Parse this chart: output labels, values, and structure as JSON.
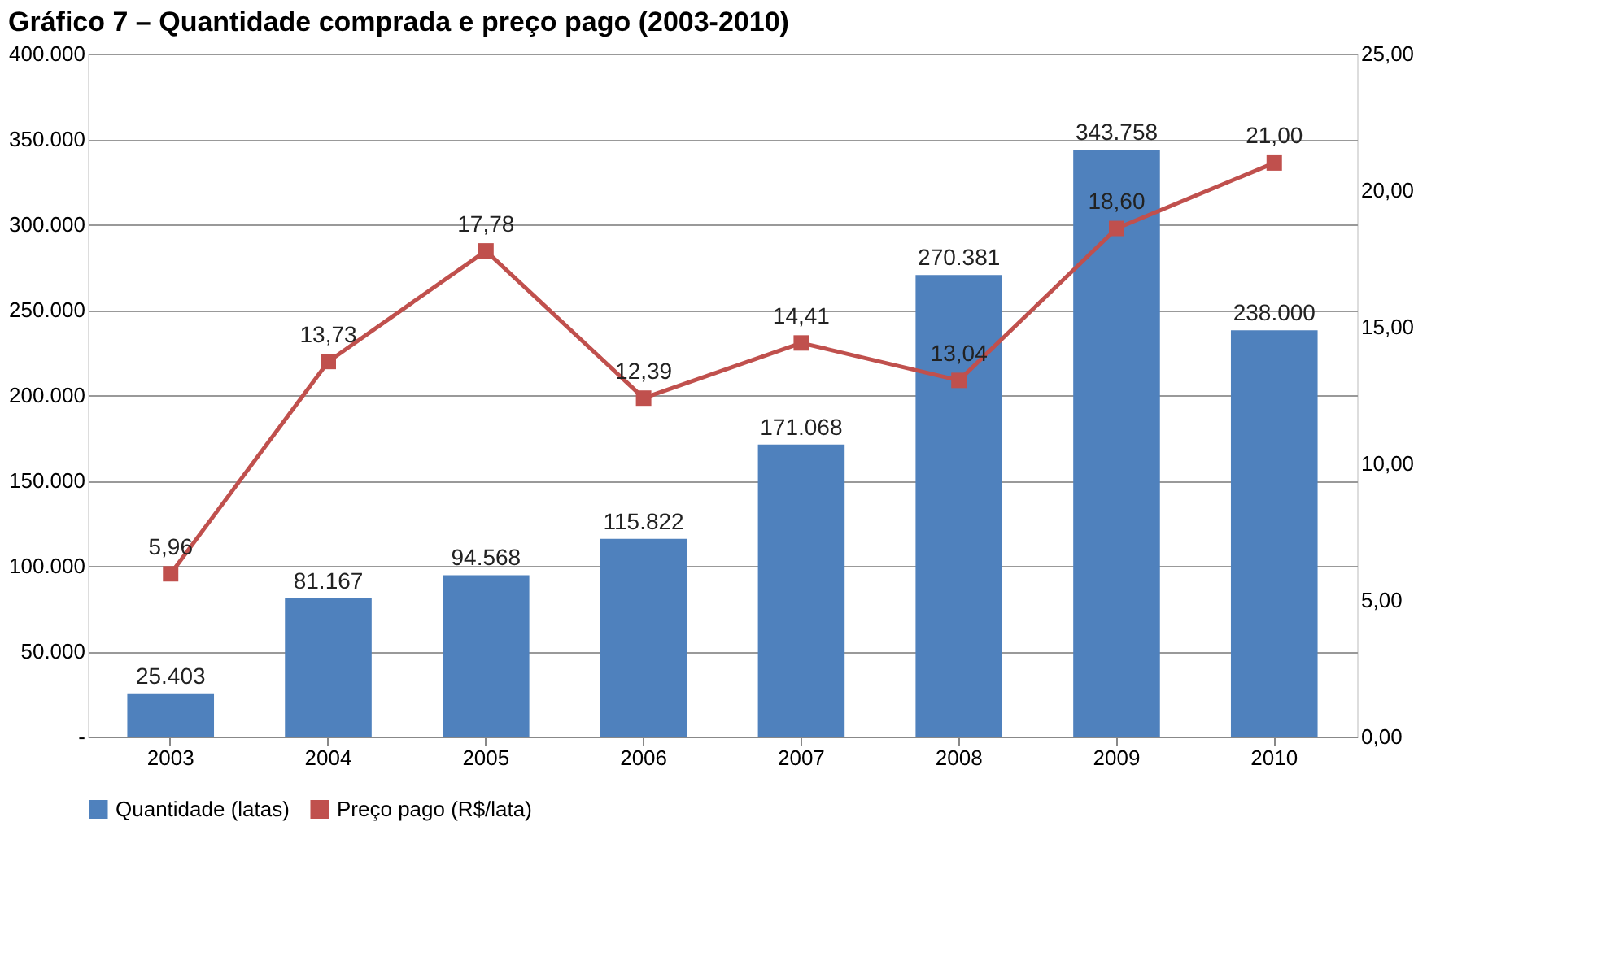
{
  "chart_data": {
    "type": "bar",
    "title": "Gráfico 7 – Quantidade comprada e preço pago (2003-2010)",
    "categories": [
      "2003",
      "2004",
      "2005",
      "2006",
      "2007",
      "2008",
      "2009",
      "2010"
    ],
    "series": [
      {
        "name": "Quantidade (latas)",
        "color": "#4f81bd",
        "values": [
          25403,
          81167,
          94568,
          115822,
          171068,
          270381,
          343758,
          238000
        ],
        "value_labels": [
          "25.403",
          "81.167",
          "94.568",
          "115.822",
          "171.068",
          "270.381",
          "343.758",
          "238.000"
        ]
      },
      {
        "name": "Preço pago (R$/lata)",
        "type": "line",
        "axis": "y2",
        "color": "#c0504d",
        "marker": "square",
        "values": [
          5.96,
          13.73,
          17.78,
          12.39,
          14.41,
          13.04,
          18.6,
          21.0
        ],
        "value_labels": [
          "5,96",
          "13,73",
          "17,78",
          "12,39",
          "14,41",
          "13,04",
          "18,60",
          "21,00"
        ]
      }
    ],
    "ylim": [
      0,
      400000
    ],
    "yticks": [
      {
        "value": 0,
        "label": "-"
      },
      {
        "value": 50000,
        "label": "50.000"
      },
      {
        "value": 100000,
        "label": "100.000"
      },
      {
        "value": 150000,
        "label": "150.000"
      },
      {
        "value": 200000,
        "label": "200.000"
      },
      {
        "value": 250000,
        "label": "250.000"
      },
      {
        "value": 300000,
        "label": "300.000"
      },
      {
        "value": 350000,
        "label": "350.000"
      },
      {
        "value": 400000,
        "label": "400.000"
      }
    ],
    "y2lim": [
      0,
      25
    ],
    "y2ticks": [
      {
        "value": 0,
        "label": "0,00"
      },
      {
        "value": 5,
        "label": "5,00"
      },
      {
        "value": 10,
        "label": "10,00"
      },
      {
        "value": 15,
        "label": "15,00"
      },
      {
        "value": 20,
        "label": "20,00"
      },
      {
        "value": 25,
        "label": "25,00"
      }
    ],
    "grid": "y",
    "legend": "bottom"
  }
}
